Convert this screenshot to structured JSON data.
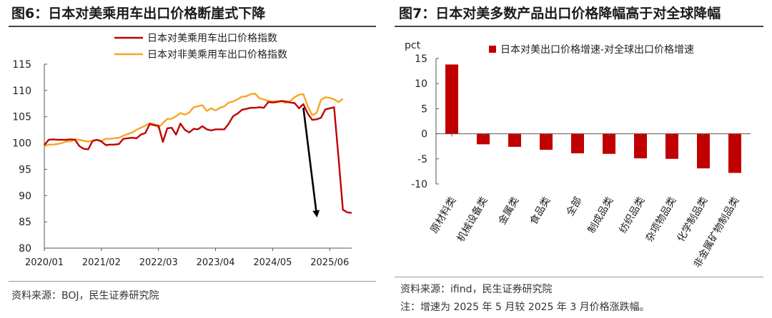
{
  "panels": {
    "left": {
      "title": "图6：日本对美乘用车出口价格断崖式下降",
      "source": "资料来源：BOJ，民生证券研究院"
    },
    "right": {
      "title": "图7：日本对美多数产品出口价格降幅高于对全球降幅",
      "source": "资料来源：ifind，民生证券研究院",
      "note": "注：增速为 2025 年 5 月较 2025 年 3 月价格涨跌幅。"
    }
  },
  "chart_data": [
    {
      "type": "line",
      "title": "图6：日本对美乘用车出口价格断崖式下降",
      "xlabel": "",
      "ylabel": "",
      "ylim": [
        80,
        115
      ],
      "yticks": [
        80,
        85,
        90,
        95,
        100,
        105,
        110,
        115
      ],
      "xtick_labels": [
        "2020/01",
        "2021/02",
        "2022/03",
        "2023/04",
        "2024/05",
        "2025/06"
      ],
      "xtick_index": [
        0,
        13,
        26,
        39,
        52,
        65
      ],
      "legend_position": "top-right",
      "annotation": "down-arrow",
      "colors": {
        "us": "#c00000",
        "nonus": "#f5a623",
        "axis": "#555555"
      },
      "series": [
        {
          "name": "日本对美乘用车出口价格指数",
          "color": "#c00000",
          "values": [
            99.6,
            100.6,
            100.7,
            100.6,
            100.6,
            100.6,
            100.7,
            100.6,
            99.4,
            98.9,
            98.8,
            100.4,
            100.6,
            100.3,
            99.6,
            99.7,
            99.7,
            99.8,
            100.8,
            100.9,
            101.0,
            100.9,
            101.6,
            101.9,
            103.6,
            103.4,
            103.3,
            100.2,
            102.8,
            102.9,
            101.6,
            103.7,
            102.5,
            102.0,
            102.7,
            102.6,
            103.2,
            102.6,
            102.4,
            102.6,
            102.6,
            102.6,
            103.7,
            105.1,
            105.6,
            106.3,
            106.5,
            106.7,
            106.7,
            106.8,
            106.7,
            107.8,
            107.7,
            107.8,
            108.0,
            107.9,
            107.7,
            107.6,
            106.6,
            107.4,
            105.6,
            104.4,
            104.5,
            104.8,
            106.4,
            106.6,
            106.8,
            97.2,
            87.3,
            86.8,
            86.7
          ]
        },
        {
          "name": "日本对非美乘用车出口价格指数",
          "color": "#f5a623",
          "values": [
            99.4,
            99.7,
            99.7,
            99.8,
            100.0,
            100.3,
            100.3,
            100.7,
            100.6,
            100.4,
            100.3,
            100.4,
            100.6,
            100.4,
            100.8,
            100.8,
            100.9,
            101.0,
            101.4,
            101.7,
            102.0,
            102.5,
            102.9,
            103.3,
            103.8,
            103.6,
            102.9,
            103.8,
            104.6,
            104.6,
            105.1,
            105.7,
            105.4,
            105.8,
            106.8,
            107.0,
            107.2,
            106.1,
            106.6,
            106.2,
            106.7,
            107.0,
            107.7,
            107.9,
            108.3,
            108.8,
            108.9,
            109.3,
            109.4,
            108.5,
            108.3,
            108.0,
            107.9,
            108.0,
            107.9,
            107.6,
            108.0,
            108.7,
            109.2,
            109.3,
            107.0,
            105.3,
            105.7,
            108.2,
            108.7,
            108.6,
            108.3,
            107.8,
            108.4
          ]
        }
      ]
    },
    {
      "type": "bar",
      "title": "图7：日本对美多数产品出口价格降幅高于对全球降幅",
      "ylabel": "pct",
      "ylim": [
        -10,
        15
      ],
      "yticks": [
        -10,
        -5,
        0,
        5,
        10,
        15
      ],
      "legend_position": "top",
      "colors": {
        "bar": "#c00000",
        "axis": "#555555"
      },
      "categories": [
        "原材料类",
        "机械设备类",
        "金属类",
        "食品类",
        "全部",
        "制成品类",
        "纺织品类",
        "杂项物品类",
        "化学制品类",
        "非金属矿物制品类"
      ],
      "series": [
        {
          "name": "日本对美出口价格增速-对全球出口价格增速",
          "values": [
            13.8,
            -2.1,
            -2.6,
            -3.2,
            -3.9,
            -4.0,
            -4.9,
            -5.0,
            -6.9,
            -7.8
          ]
        }
      ]
    }
  ]
}
